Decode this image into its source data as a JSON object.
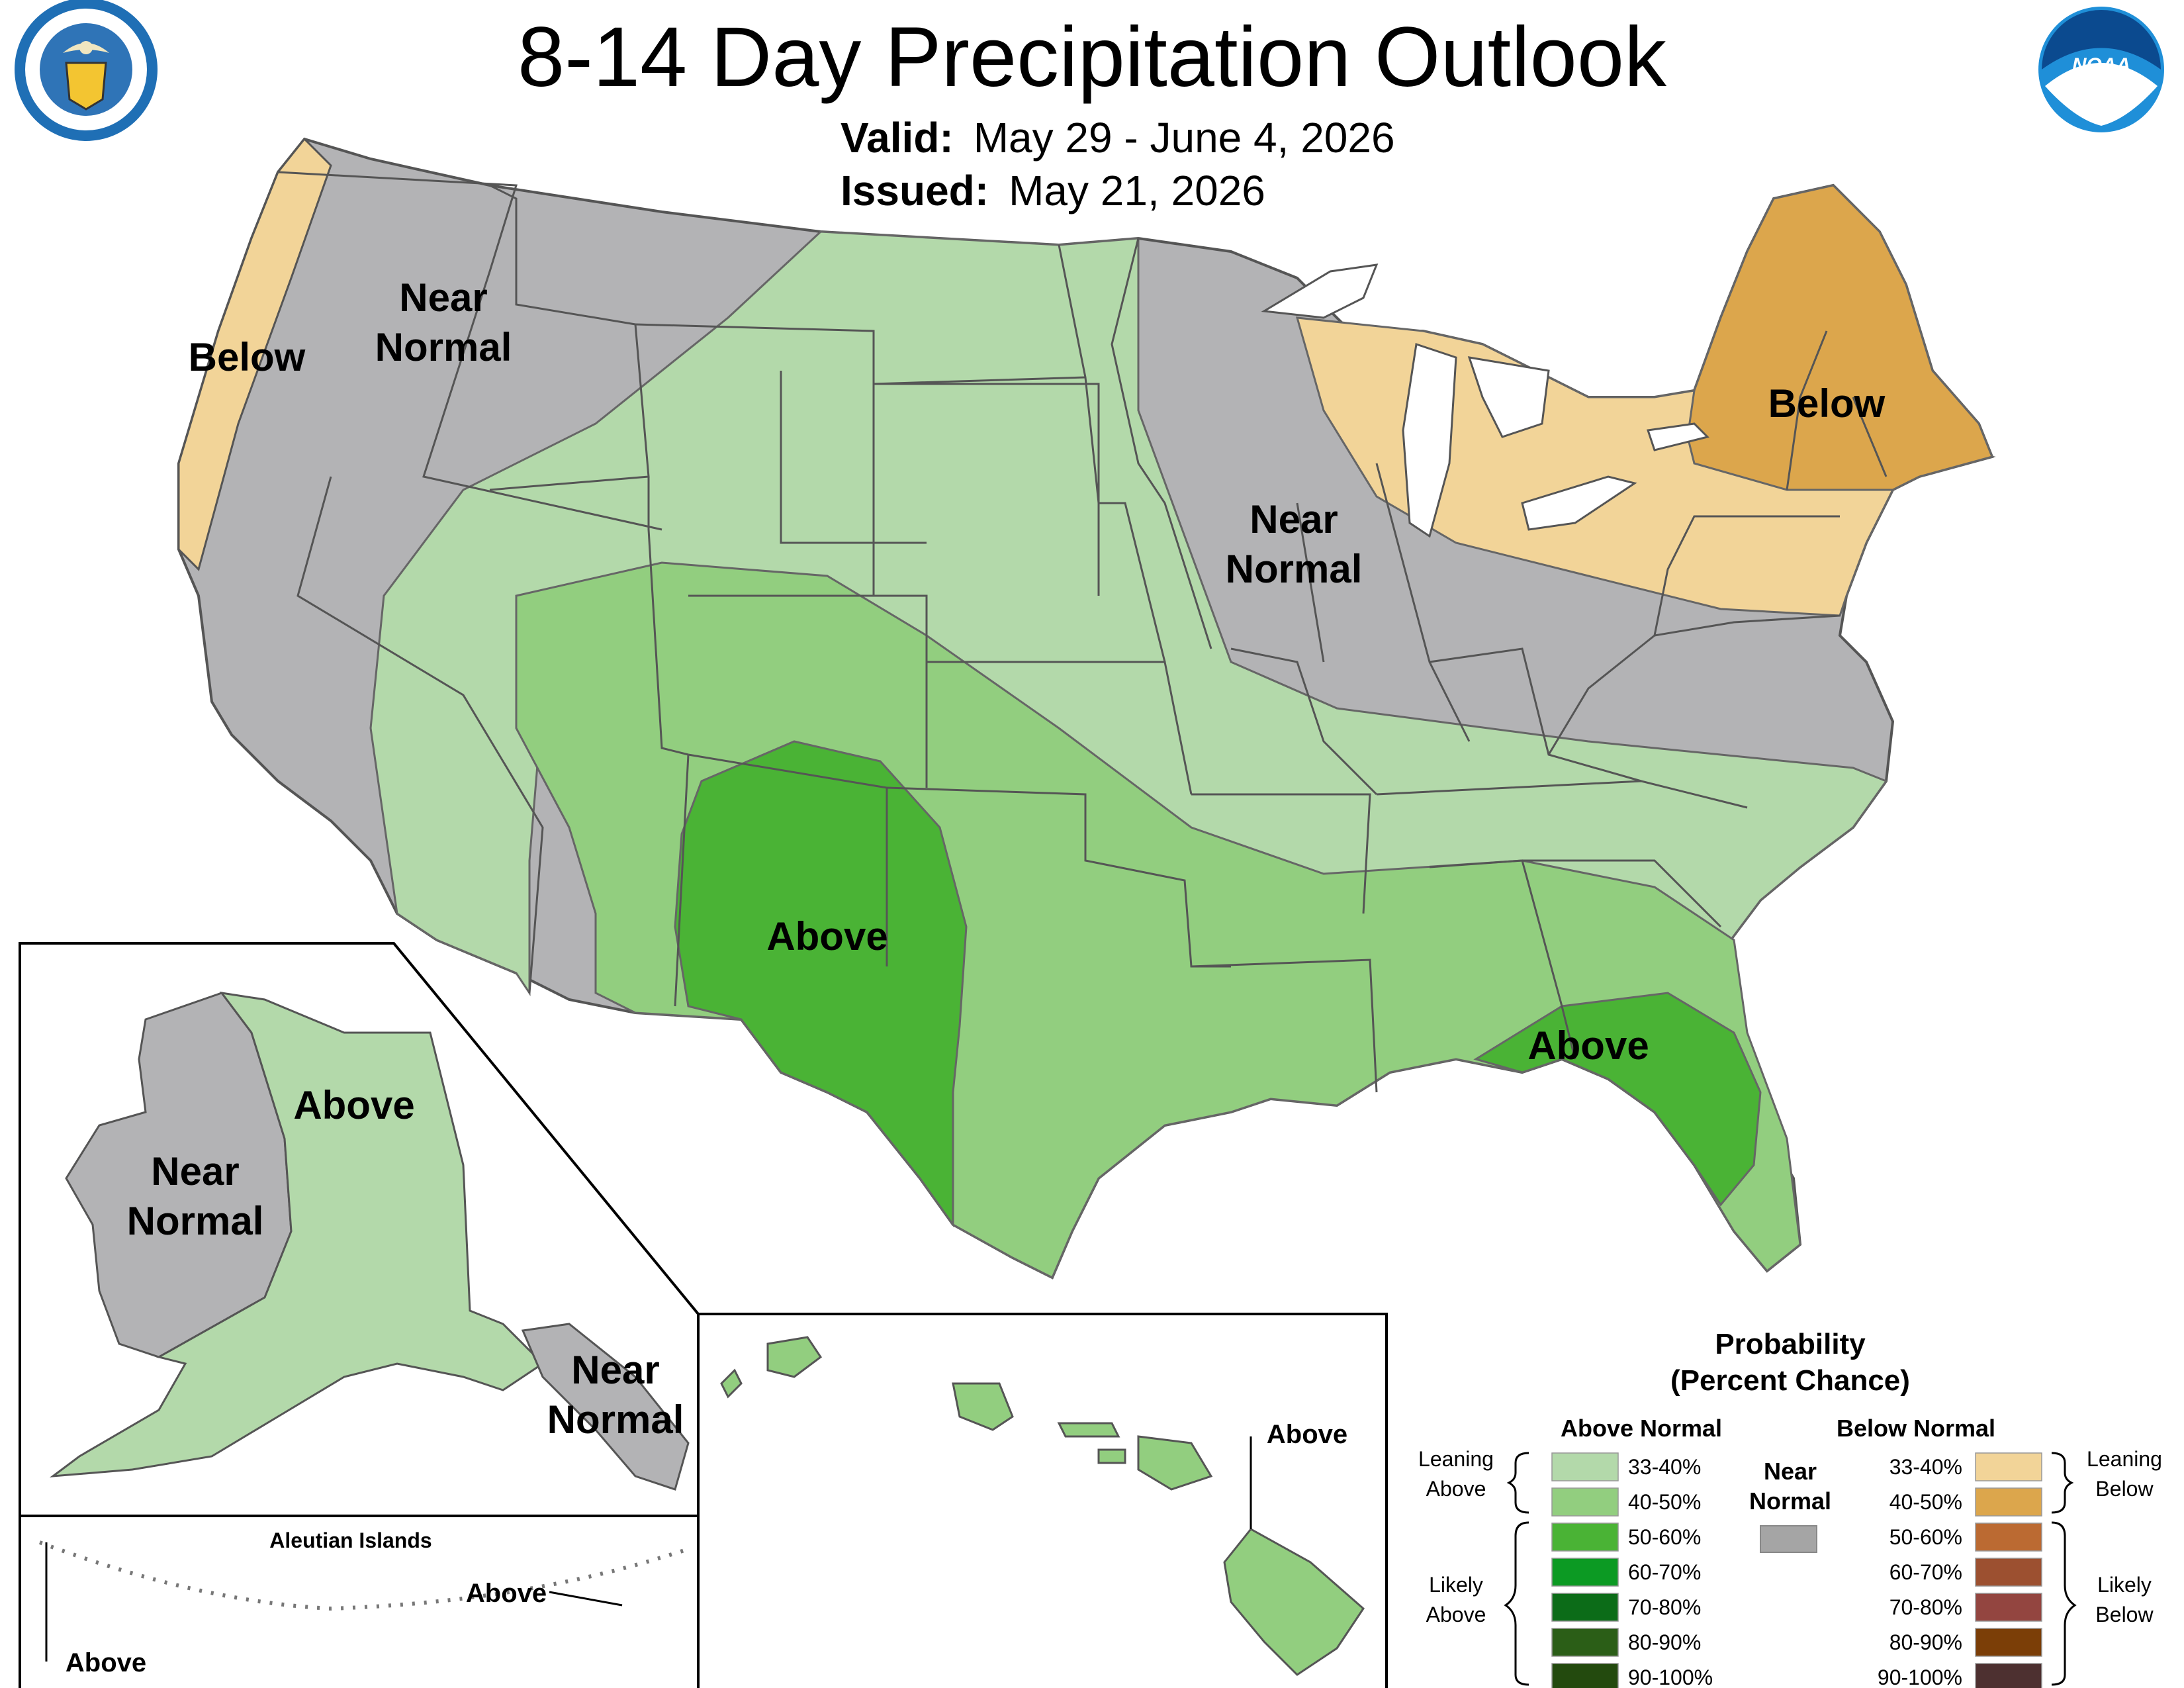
{
  "header": {
    "title": "8-14 Day Precipitation Outlook",
    "valid_label": "Valid:",
    "valid_value": "May 29 - June 4, 2026",
    "issued_label": "Issued:",
    "issued_value": "May 21, 2026"
  },
  "logos": {
    "commerce_seal_text": "DEPARTMENT OF COMMERCE · UNITED STATES OF AMERICA",
    "noaa_text": "NOAA"
  },
  "map_labels": {
    "west_below": "Below",
    "northwest_near": [
      "Near",
      "Normal"
    ],
    "midwest_near": [
      "Near",
      "Normal"
    ],
    "northeast_below": "Below",
    "southwest_above": "Above",
    "southeast_above": "Above"
  },
  "alaska": {
    "above": "Above",
    "west_near": [
      "Near",
      "Normal"
    ],
    "southeast_near": [
      "Near",
      "Normal"
    ]
  },
  "aleutians": {
    "title": "Aleutian Islands",
    "above_east": "Above",
    "above_west": "Above"
  },
  "hawaii": {
    "above": "Above"
  },
  "legend": {
    "title_line1": "Probability",
    "title_line2": "(Percent Chance)",
    "above_header": "Above Normal",
    "below_header": "Below Normal",
    "near_header": [
      "Near",
      "Normal"
    ],
    "leaning_above": [
      "Leaning",
      "Above"
    ],
    "likely_above": [
      "Likely",
      "Above"
    ],
    "leaning_below": [
      "Leaning",
      "Below"
    ],
    "likely_below": [
      "Likely",
      "Below"
    ],
    "above_levels": [
      {
        "label": "33-40%",
        "color": "#b3d9aa"
      },
      {
        "label": "40-50%",
        "color": "#92ce7f"
      },
      {
        "label": "50-60%",
        "color": "#4ab335"
      },
      {
        "label": "60-70%",
        "color": "#0c9a23"
      },
      {
        "label": "70-80%",
        "color": "#0c6c18"
      },
      {
        "label": "80-90%",
        "color": "#2b5e17"
      },
      {
        "label": "90-100%",
        "color": "#234a0e"
      }
    ],
    "below_levels": [
      {
        "label": "33-40%",
        "color": "#f2d498"
      },
      {
        "label": "40-50%",
        "color": "#dca64c"
      },
      {
        "label": "50-60%",
        "color": "#bb6a32"
      },
      {
        "label": "60-70%",
        "color": "#9c5030"
      },
      {
        "label": "70-80%",
        "color": "#934540"
      },
      {
        "label": "80-90%",
        "color": "#7b3e07"
      },
      {
        "label": "90-100%",
        "color": "#4d3030"
      }
    ],
    "near_color": "#a5a5a5"
  },
  "category_colors": {
    "near_normal": "#b3b3b5",
    "below_33_40": "#f2d498",
    "below_40_50": "#dca64c",
    "above_33_40": "#b3d9aa",
    "above_40_50": "#92ce7f",
    "above_50_60": "#4ab335"
  }
}
